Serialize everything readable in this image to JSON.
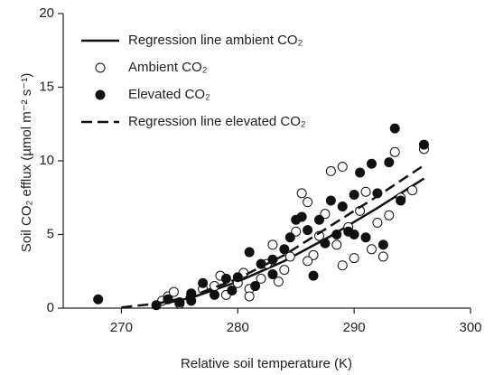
{
  "chart_data": {
    "type": "scatter",
    "xlabel": "Relative soil temperature (K)",
    "ylabel": "Soil CO₂ efflux (µmol m⁻² s⁻¹)",
    "xlim": [
      265,
      300
    ],
    "xticks": [
      270,
      280,
      290,
      300
    ],
    "ylim": [
      0,
      20
    ],
    "yticks": [
      0,
      5,
      10,
      15,
      20
    ],
    "grid": false,
    "legend": "upper left",
    "series": [
      {
        "name": "Regression line ambient CO₂",
        "kind": "line",
        "dashed": false,
        "color": "#111111",
        "x": [
          273,
          276,
          280,
          284,
          288,
          292,
          296
        ],
        "values": [
          0.2,
          0.7,
          1.8,
          3.2,
          4.9,
          6.8,
          8.8
        ]
      },
      {
        "name": "Ambient CO₂",
        "kind": "scatter",
        "filled": false,
        "color": "#111111",
        "x": [
          273.5,
          274,
          274.5,
          275,
          276,
          277,
          278,
          278.5,
          279,
          280,
          280.5,
          281,
          282,
          282.5,
          283,
          283.5,
          284,
          284.5,
          285,
          285.5,
          286,
          286.5,
          287,
          287.5,
          288,
          288.5,
          289,
          289.5,
          290,
          290.5,
          291,
          291.5,
          292,
          292.5,
          293,
          293.5,
          294,
          295,
          296,
          289,
          286,
          281
        ],
        "values": [
          0.5,
          0.8,
          1.1,
          0.3,
          0.9,
          1.3,
          1.5,
          2.2,
          0.9,
          1.7,
          2.4,
          1.3,
          2.0,
          3.0,
          4.3,
          1.8,
          2.6,
          3.5,
          5.2,
          7.8,
          7.2,
          3.6,
          4.9,
          6.4,
          9.3,
          4.3,
          9.6,
          5.5,
          3.4,
          6.6,
          7.9,
          4.0,
          5.8,
          3.5,
          6.3,
          10.6,
          7.5,
          8.0,
          10.8,
          2.9,
          3.2,
          0.8
        ]
      },
      {
        "name": "Elevated CO₂",
        "kind": "scatter",
        "filled": true,
        "color": "#111111",
        "x": [
          268,
          273,
          274,
          275,
          276,
          277,
          278,
          279,
          279.5,
          280,
          281,
          281.5,
          282,
          283,
          284,
          284.5,
          285,
          285.5,
          286,
          286.5,
          287,
          287.5,
          288,
          288.5,
          289,
          289.5,
          290,
          290.5,
          291,
          291.5,
          292,
          292.5,
          293,
          293.5,
          294,
          296,
          290,
          283,
          276
        ],
        "values": [
          0.6,
          0.2,
          0.6,
          0.4,
          1.0,
          1.7,
          0.9,
          2.0,
          1.2,
          2.1,
          3.8,
          1.5,
          3.0,
          3.3,
          4.0,
          4.8,
          6.0,
          6.2,
          5.3,
          2.2,
          6.0,
          4.4,
          7.3,
          5.0,
          6.9,
          5.2,
          7.7,
          9.2,
          4.8,
          9.8,
          7.8,
          4.3,
          9.9,
          12.2,
          7.3,
          11.1,
          5.0,
          2.3,
          0.5
        ]
      },
      {
        "name": "Regression line elevated CO₂",
        "kind": "line",
        "dashed": true,
        "color": "#111111",
        "x": [
          270,
          273,
          276,
          280,
          284,
          288,
          292,
          296
        ],
        "values": [
          0.05,
          0.3,
          0.8,
          2.0,
          3.6,
          5.6,
          7.6,
          9.7
        ]
      }
    ]
  }
}
